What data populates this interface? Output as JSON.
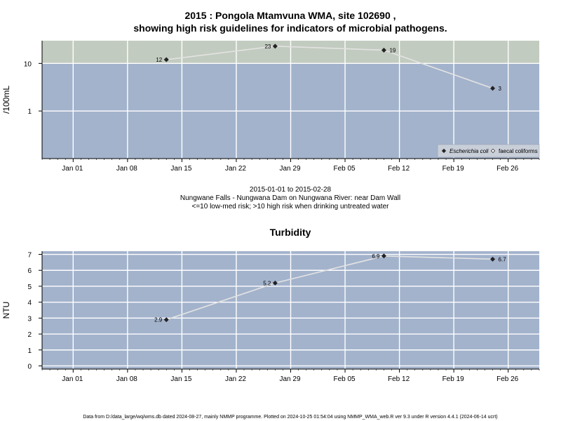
{
  "colors": {
    "zone_low": "#a3b3cc",
    "zone_high": "#c2cbbf",
    "grid": "#ffffff",
    "line": "#e3e3e3",
    "marker": "#222222",
    "axis": "#000000"
  },
  "chart_data": [
    {
      "type": "line",
      "title": "2015 : Pongola Mtamvuna WMA, site 102690 ,",
      "subtitle": "showing high risk guidelines for indicators of microbial pathogens.",
      "ylabel": "/100mL",
      "yscale": "log",
      "ylim": [
        0.1,
        30
      ],
      "xlim": [
        "2014-12-28",
        "2015-03-02"
      ],
      "x_ticks": [
        {
          "date": "2015-01-01",
          "label": "Jan 01"
        },
        {
          "date": "2015-01-08",
          "label": "Jan 08"
        },
        {
          "date": "2015-01-15",
          "label": "Jan 15"
        },
        {
          "date": "2015-01-22",
          "label": "Jan 22"
        },
        {
          "date": "2015-01-29",
          "label": "Jan 29"
        },
        {
          "date": "2015-02-05",
          "label": "Feb 05"
        },
        {
          "date": "2015-02-12",
          "label": "Feb 12"
        },
        {
          "date": "2015-02-19",
          "label": "Feb 19"
        },
        {
          "date": "2015-02-26",
          "label": "Feb 26"
        }
      ],
      "y_ticks": [
        {
          "value": 1,
          "label": "1"
        },
        {
          "value": 10,
          "label": "10"
        }
      ],
      "zones": [
        {
          "from": 0.1,
          "to": 10,
          "color": "#a3b3cc"
        },
        {
          "from": 10,
          "to": 30,
          "color": "#c2cbbf"
        }
      ],
      "series": [
        {
          "name": "Escherichia coli",
          "marker": "filled-diamond",
          "points": [
            {
              "x": "2015-01-13",
              "y": 12,
              "label": "12"
            },
            {
              "x": "2015-01-27",
              "y": 23,
              "label": "23"
            },
            {
              "x": "2015-02-10",
              "y": 19,
              "label": "19"
            },
            {
              "x": "2015-02-24",
              "y": 3,
              "label": "3"
            }
          ]
        }
      ],
      "legend": {
        "position": "bottom-right",
        "items": [
          {
            "label": "Escherichia coli",
            "marker": "filled-diamond",
            "italic": true
          },
          {
            "label": "faecal coliforms",
            "marker": "open-diamond",
            "italic": false
          }
        ]
      },
      "caption": [
        "2015-01-01 to 2015-02-28",
        "Nungwane Falls - Nungwana Dam on Nungwana River: near Dam Wall",
        "<=10 low-med risk; >10 high risk when drinking untreated water"
      ],
      "grid": true
    },
    {
      "type": "line",
      "title": "Turbidity",
      "ylabel": "NTU",
      "yscale": "linear",
      "ylim": [
        -0.2,
        7.2
      ],
      "xlim": [
        "2014-12-28",
        "2015-03-02"
      ],
      "x_ticks": [
        {
          "date": "2015-01-01",
          "label": "Jan 01"
        },
        {
          "date": "2015-01-08",
          "label": "Jan 08"
        },
        {
          "date": "2015-01-15",
          "label": "Jan 15"
        },
        {
          "date": "2015-01-22",
          "label": "Jan 22"
        },
        {
          "date": "2015-01-29",
          "label": "Jan 29"
        },
        {
          "date": "2015-02-05",
          "label": "Feb 05"
        },
        {
          "date": "2015-02-12",
          "label": "Feb 12"
        },
        {
          "date": "2015-02-19",
          "label": "Feb 19"
        },
        {
          "date": "2015-02-26",
          "label": "Feb 26"
        }
      ],
      "y_ticks": [
        {
          "value": 0,
          "label": "0"
        },
        {
          "value": 1,
          "label": "1"
        },
        {
          "value": 2,
          "label": "2"
        },
        {
          "value": 3,
          "label": "3"
        },
        {
          "value": 4,
          "label": "4"
        },
        {
          "value": 5,
          "label": "5"
        },
        {
          "value": 6,
          "label": "6"
        },
        {
          "value": 7,
          "label": "7"
        }
      ],
      "zones": [
        {
          "from": -0.2,
          "to": 7.2,
          "color": "#a3b3cc"
        }
      ],
      "series": [
        {
          "name": "Turbidity",
          "marker": "filled-diamond",
          "points": [
            {
              "x": "2015-01-13",
              "y": 2.9,
              "label": "2.9"
            },
            {
              "x": "2015-01-27",
              "y": 5.2,
              "label": "5.2"
            },
            {
              "x": "2015-02-10",
              "y": 6.9,
              "label": "6.9"
            },
            {
              "x": "2015-02-24",
              "y": 6.7,
              "label": "6.7"
            }
          ]
        }
      ],
      "grid": true
    }
  ],
  "footer": "Data from D:/data_large/wq/wms.db dated 2024-08-27, mainly NMMP programme. Plotted on 2024-10-25 01:54:04 using NMMP_WMA_web.R ver 9.3 under R version 4.4.1 (2024-06-14 ucrt)"
}
